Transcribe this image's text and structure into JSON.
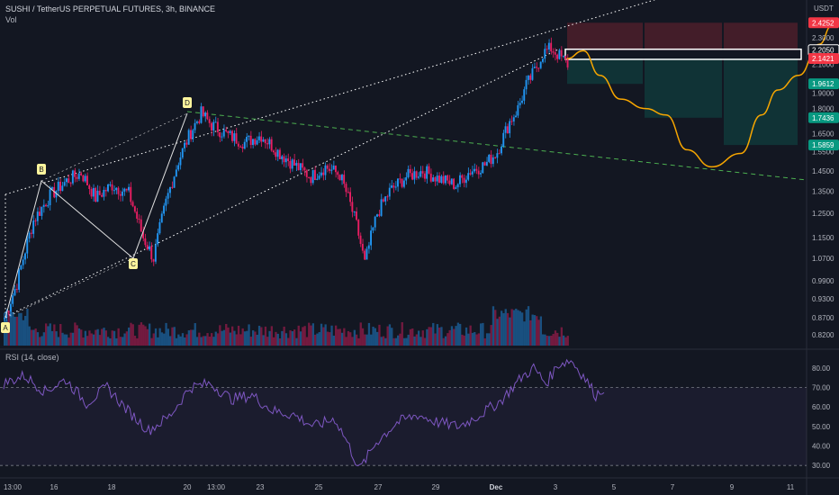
{
  "header": {
    "title": "SUSHI / TetherUS PERPETUAL FUTURES, 3h, BINANCE",
    "volume_label": "Vol",
    "rsi_label": "RSI (14, close)"
  },
  "price_axis": {
    "currency": "USDT",
    "ticks": [
      "2.3000",
      "2.1000",
      "1.9000",
      "1.8000",
      "1.6500",
      "1.5500",
      "1.4500",
      "1.3500",
      "1.2500",
      "1.1500",
      "1.0700",
      "0.9900",
      "0.9300",
      "0.8700",
      "0.8200"
    ],
    "highlights": [
      {
        "text": "2.4252",
        "color": "#f23645"
      },
      {
        "text": "2.2050",
        "color": "#ffffff"
      },
      {
        "text": "2.1421",
        "color": "#f23645"
      },
      {
        "text": "1.9612",
        "color": "#089981"
      },
      {
        "text": "1.7436",
        "color": "#089981"
      },
      {
        "text": "1.5859",
        "color": "#089981"
      }
    ]
  },
  "rsi_axis": {
    "ticks": [
      "80.00",
      "70.00",
      "60.00",
      "50.00",
      "40.00",
      "30.00"
    ]
  },
  "time_axis": {
    "labels": [
      "13:00",
      "16",
      "18",
      "20",
      "13:00",
      "23",
      "25",
      "27",
      "29",
      "Dec",
      "3",
      "5",
      "7",
      "9",
      "11"
    ]
  },
  "pattern_labels": [
    "A",
    "B",
    "C",
    "D"
  ],
  "colors": {
    "background": "#131722",
    "up": "#2196f3",
    "down": "#e91e63",
    "projection": "#f7a600",
    "target_zone": "#089981",
    "stop_zone": "#f23645",
    "rsi_line": "#7e57c2"
  },
  "chart_data": {
    "type": "candlestick",
    "symbol": "SUSHI / TetherUS PERPETUAL FUTURES",
    "timeframe": "3h",
    "exchange": "BINANCE",
    "price_path": [
      [
        0,
        0.87
      ],
      [
        6,
        0.98
      ],
      [
        14,
        1.22
      ],
      [
        22,
        1.33
      ],
      [
        30,
        1.4
      ],
      [
        37,
        1.44
      ],
      [
        44,
        1.32
      ],
      [
        52,
        1.38
      ],
      [
        60,
        1.34
      ],
      [
        67,
        1.15
      ],
      [
        72,
        1.07
      ],
      [
        78,
        1.3
      ],
      [
        84,
        1.5
      ],
      [
        90,
        1.66
      ],
      [
        95,
        1.77
      ],
      [
        100,
        1.7
      ],
      [
        108,
        1.64
      ],
      [
        116,
        1.6
      ],
      [
        124,
        1.64
      ],
      [
        132,
        1.55
      ],
      [
        140,
        1.48
      ],
      [
        148,
        1.42
      ],
      [
        155,
        1.47
      ],
      [
        162,
        1.43
      ],
      [
        166,
        1.32
      ],
      [
        170,
        1.2
      ],
      [
        174,
        1.05
      ],
      [
        180,
        1.25
      ],
      [
        186,
        1.35
      ],
      [
        194,
        1.42
      ],
      [
        202,
        1.45
      ],
      [
        210,
        1.41
      ],
      [
        218,
        1.38
      ],
      [
        225,
        1.45
      ],
      [
        232,
        1.48
      ],
      [
        238,
        1.55
      ],
      [
        244,
        1.72
      ],
      [
        248,
        1.8
      ],
      [
        252,
        1.95
      ],
      [
        256,
        2.05
      ],
      [
        260,
        2.18
      ],
      [
        264,
        2.22
      ],
      [
        268,
        2.16
      ],
      [
        272,
        2.1
      ]
    ],
    "projection_path": [
      [
        272,
        2.14
      ],
      [
        280,
        2.2
      ],
      [
        288,
        2.02
      ],
      [
        298,
        1.86
      ],
      [
        310,
        1.8
      ],
      [
        320,
        1.76
      ],
      [
        330,
        1.56
      ],
      [
        342,
        1.47
      ],
      [
        356,
        1.54
      ],
      [
        366,
        1.76
      ],
      [
        374,
        1.92
      ],
      [
        384,
        2.02
      ],
      [
        394,
        2.25
      ],
      [
        400,
        2.4
      ]
    ],
    "price_levels": {
      "stop": 2.4252,
      "entry_top": 2.205,
      "entry": 2.1421,
      "tp1": 1.9612,
      "tp2": 1.7436,
      "tp3": 1.5859
    },
    "rsi_period": 14,
    "rsi_path": [
      [
        0,
        72
      ],
      [
        10,
        76
      ],
      [
        20,
        68
      ],
      [
        30,
        74
      ],
      [
        40,
        62
      ],
      [
        50,
        70
      ],
      [
        60,
        58
      ],
      [
        70,
        48
      ],
      [
        80,
        55
      ],
      [
        90,
        70
      ],
      [
        100,
        72
      ],
      [
        110,
        64
      ],
      [
        120,
        66
      ],
      [
        130,
        58
      ],
      [
        140,
        56
      ],
      [
        150,
        50
      ],
      [
        160,
        54
      ],
      [
        165,
        44
      ],
      [
        172,
        28
      ],
      [
        180,
        42
      ],
      [
        190,
        52
      ],
      [
        200,
        56
      ],
      [
        210,
        52
      ],
      [
        220,
        50
      ],
      [
        230,
        56
      ],
      [
        240,
        63
      ],
      [
        250,
        75
      ],
      [
        256,
        80
      ],
      [
        262,
        72
      ],
      [
        268,
        82
      ],
      [
        274,
        84
      ],
      [
        280,
        76
      ],
      [
        286,
        66
      ],
      [
        290,
        70
      ]
    ],
    "rsi_levels": [
      70,
      30
    ],
    "ylim_price": [
      0.8,
      2.45
    ],
    "ylim_rsi": [
      25,
      85
    ]
  }
}
